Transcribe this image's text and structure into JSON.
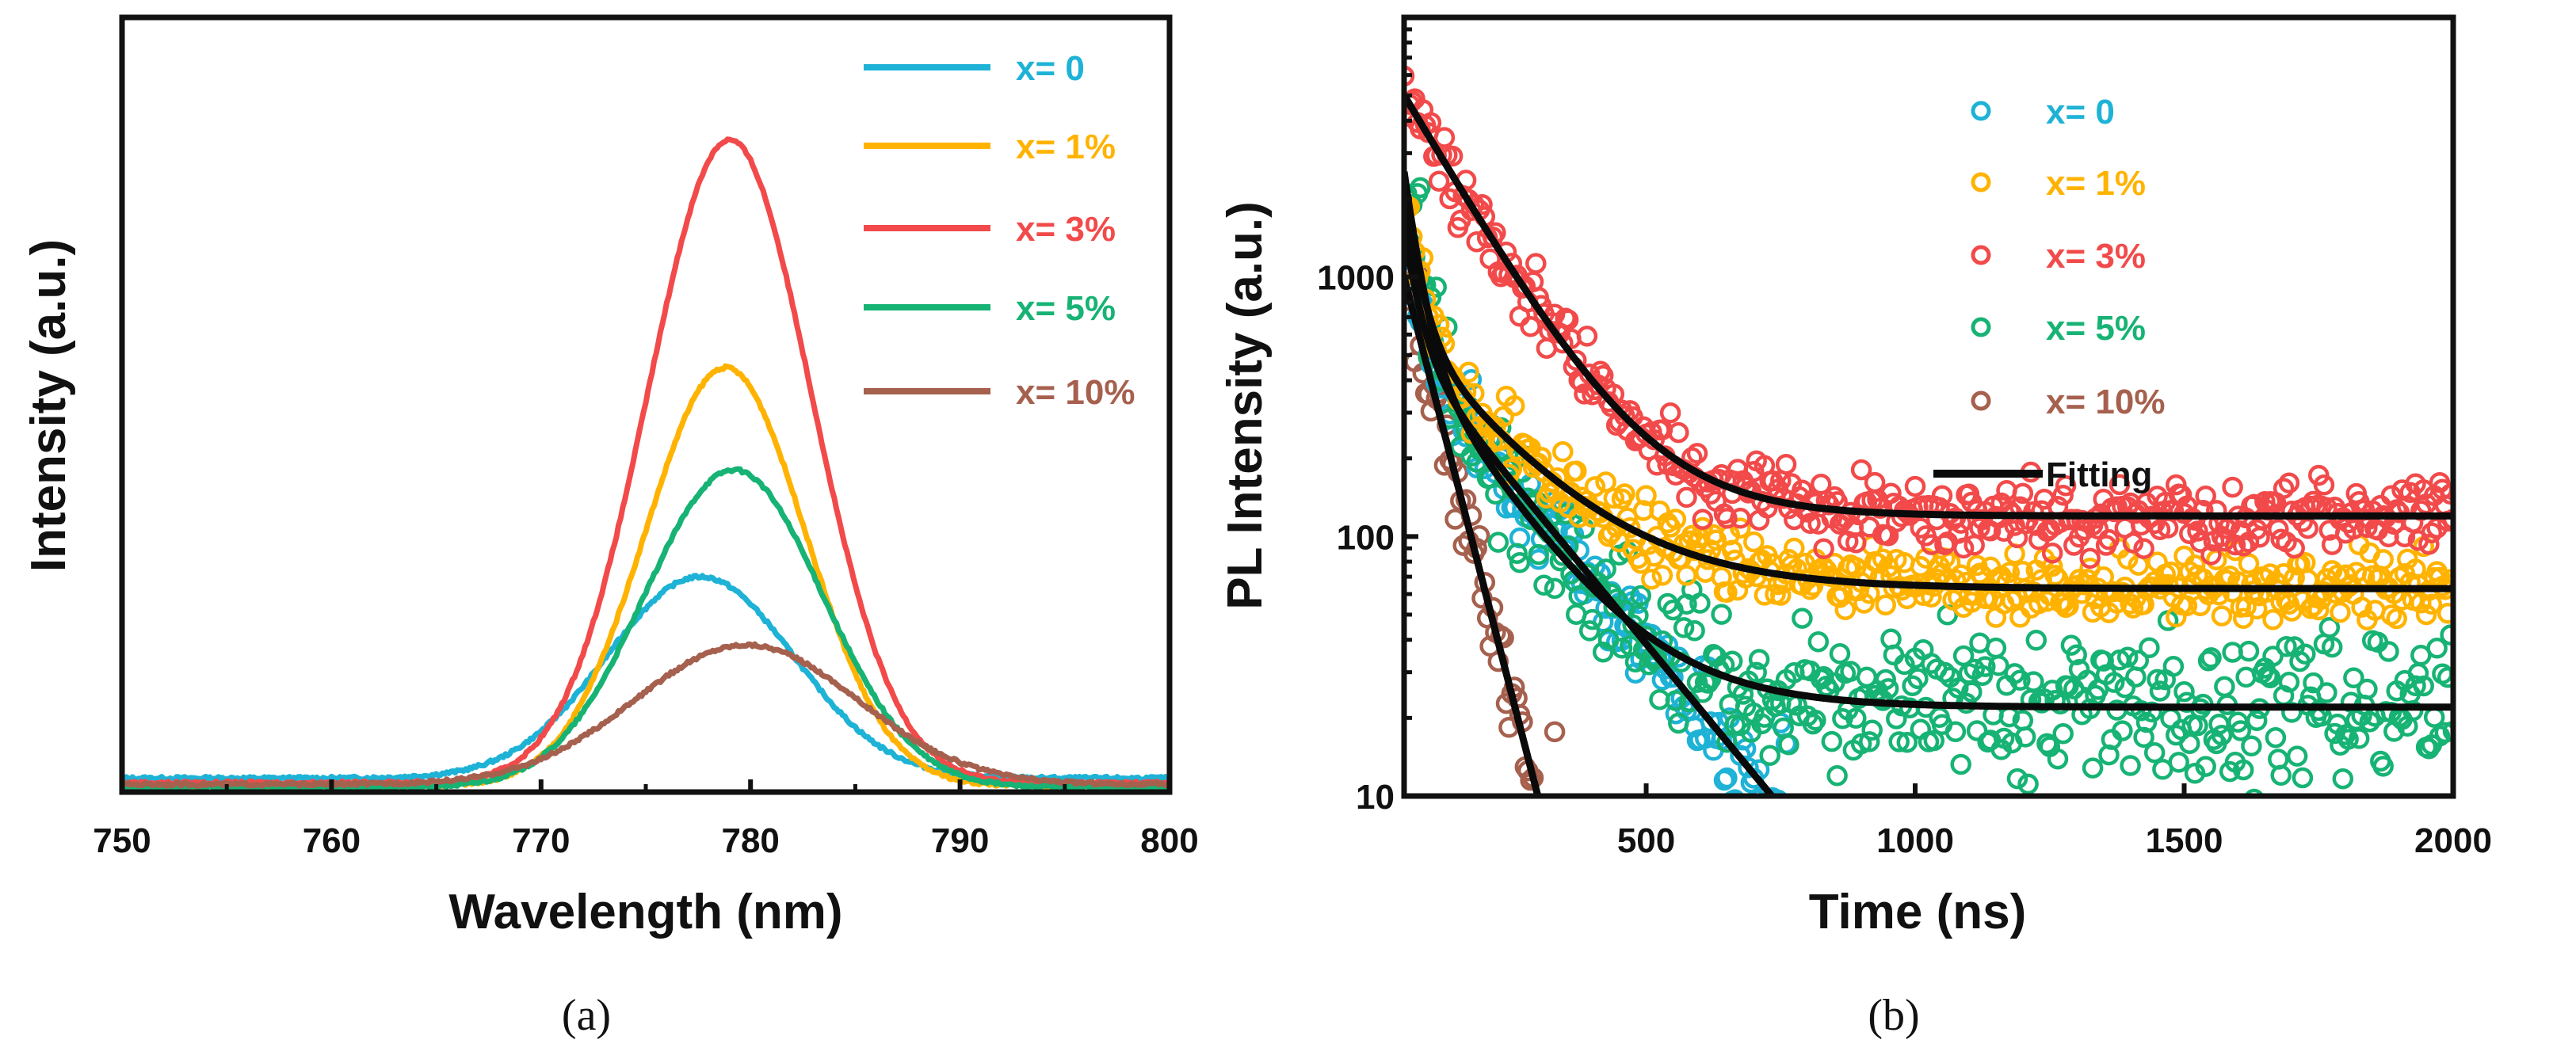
{
  "chart_data": [
    {
      "type": "line",
      "panel_label": "(a)",
      "xlabel": "Wavelength (nm)",
      "ylabel": "Intensity (a.u.)",
      "xlim": [
        750,
        800
      ],
      "ylim": [
        0,
        1
      ],
      "xticks": [
        "750",
        "760",
        "770",
        "780",
        "790",
        "800"
      ],
      "xtick_values": [
        750,
        760,
        770,
        780,
        790,
        800
      ],
      "minor_xticks": [
        755,
        765,
        775,
        785,
        795
      ],
      "legend_position": "top-right",
      "series": [
        {
          "name": "x= 0",
          "color": "#1eb3d6",
          "peak_wavelength": 777.6,
          "peak_intensity": 0.26,
          "fwhm": 10.5,
          "baseline": 0.018
        },
        {
          "name": "x= 1%",
          "color": "#ffb300",
          "peak_wavelength": 778.8,
          "peak_intensity": 0.54,
          "fwhm": 9.0,
          "baseline": 0.008
        },
        {
          "name": "x= 3%",
          "color": "#f24a4a",
          "peak_wavelength": 779.0,
          "peak_intensity": 0.83,
          "fwhm": 9.2,
          "baseline": 0.012
        },
        {
          "name": "x= 5%",
          "color": "#17b374",
          "peak_wavelength": 779.2,
          "peak_intensity": 0.41,
          "fwhm": 10.0,
          "baseline": 0.006
        },
        {
          "name": "x= 10%",
          "color": "#a6604e",
          "peak_wavelength": 779.8,
          "peak_intensity": 0.18,
          "fwhm": 12.5,
          "baseline": 0.01
        }
      ]
    },
    {
      "type": "scatter",
      "panel_label": "(b)",
      "xlabel": "Time (ns)",
      "ylabel": "PL Intensity (a.u.)",
      "xlim": [
        50,
        2000
      ],
      "ylim": [
        10,
        10000
      ],
      "yscale": "log",
      "xticks": [
        "500",
        "1000",
        "1500",
        "2000"
      ],
      "xtick_values": [
        500,
        1000,
        1500,
        2000
      ],
      "yticks": [
        "10",
        "100",
        "1000"
      ],
      "ytick_values": [
        10,
        100,
        1000
      ],
      "legend_position": "top-center",
      "fit_label": "Fitting",
      "fit_model": "A1*exp(-(t-50)/t1) + A2*exp(-(t-50)/t2) + y0",
      "series": [
        {
          "name": "x= 0",
          "color": "#1eb3d6",
          "A1": 1000,
          "t1": 25,
          "A2": 520,
          "t2": 173,
          "y0": 0,
          "noise": 0.25
        },
        {
          "name": "x= 1%",
          "color": "#ffb300",
          "A1": 1500,
          "t1": 25,
          "A2": 550,
          "t2": 167,
          "y0": 63,
          "noise": 0.22
        },
        {
          "name": "x= 3%",
          "color": "#f24a4a",
          "A1": 0,
          "t1": 25,
          "A2": 4900,
          "t2": 122,
          "y0": 120,
          "noise": 0.22
        },
        {
          "name": "x= 5%",
          "color": "#17b374",
          "A1": 2000,
          "t1": 25,
          "A2": 520,
          "t2": 138,
          "y0": 22,
          "noise": 0.4
        },
        {
          "name": "x= 10%",
          "color": "#a6604e",
          "A1": 0,
          "t1": 25,
          "A2": 1000,
          "t2": 54,
          "y0": 0,
          "noise": 0.3
        }
      ]
    }
  ]
}
